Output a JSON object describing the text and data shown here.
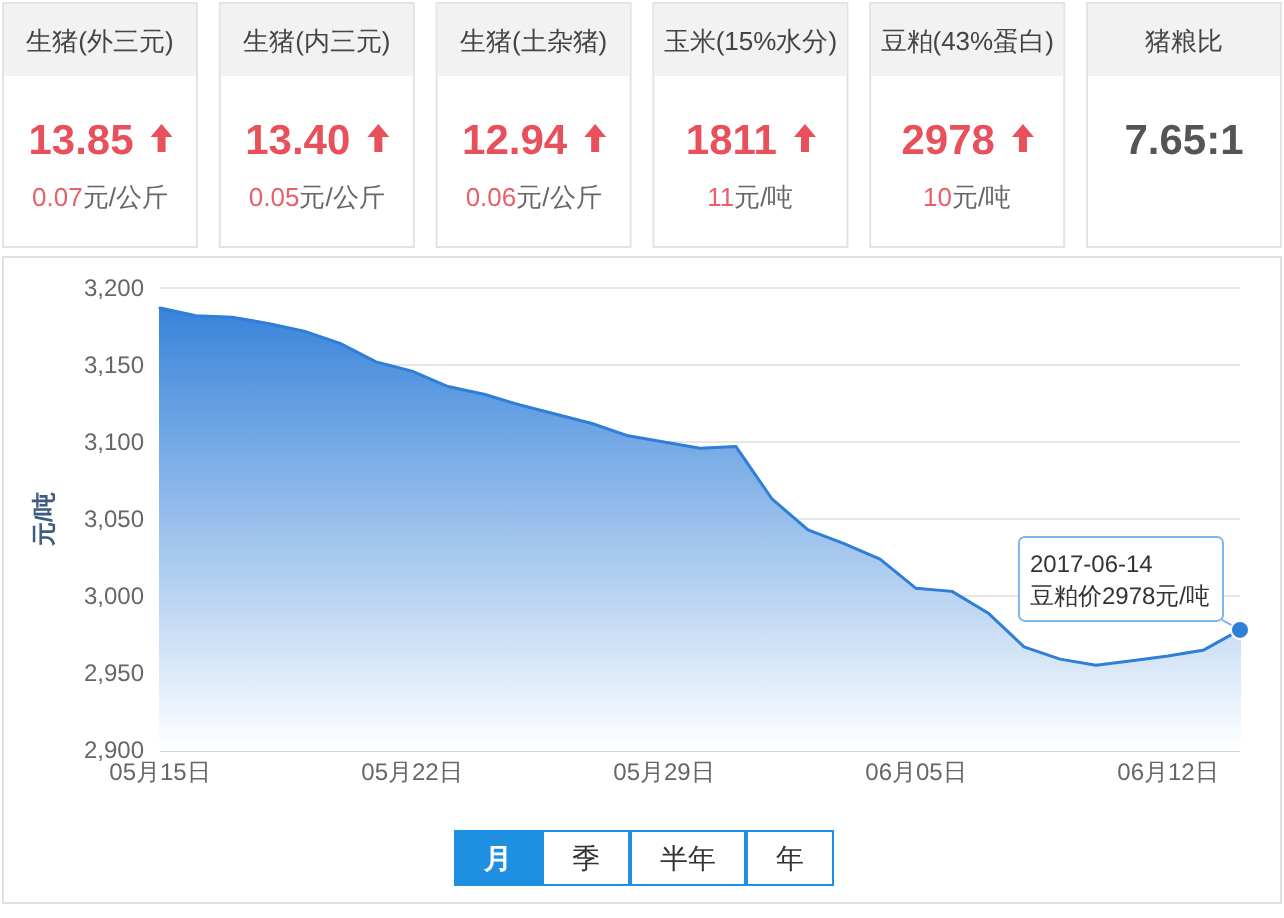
{
  "chart_data": [
    {
      "type": "other",
      "title": "生猪(外三元)",
      "annotations": [
        "13.85",
        "0.07元/公斤"
      ]
    },
    {
      "type": "other",
      "title": "生猪(内三元)",
      "annotations": [
        "13.40",
        "0.05元/公斤"
      ]
    },
    {
      "type": "other",
      "title": "生猪(土杂猪)",
      "annotations": [
        "12.94",
        "0.06元/公斤"
      ]
    },
    {
      "type": "other",
      "title": "玉米(15%水分)",
      "annotations": [
        "1811",
        "11元/吨"
      ]
    },
    {
      "type": "other",
      "title": "豆粕(43%蛋白)",
      "annotations": [
        "2978",
        "10元/吨"
      ]
    },
    {
      "type": "other",
      "title": "猪粮比",
      "annotations": [
        "7.65:1"
      ]
    },
    {
      "type": "area",
      "ylabel": "元/吨",
      "x": [
        "2017-05-15",
        "2017-05-16",
        "2017-05-17",
        "2017-05-18",
        "2017-05-19",
        "2017-05-20",
        "2017-05-21",
        "2017-05-22",
        "2017-05-23",
        "2017-05-24",
        "2017-05-25",
        "2017-05-26",
        "2017-05-27",
        "2017-05-28",
        "2017-05-29",
        "2017-05-30",
        "2017-05-31",
        "2017-06-01",
        "2017-06-02",
        "2017-06-03",
        "2017-06-04",
        "2017-06-05",
        "2017-06-06",
        "2017-06-07",
        "2017-06-08",
        "2017-06-09",
        "2017-06-10",
        "2017-06-11",
        "2017-06-12",
        "2017-06-13",
        "2017-06-14"
      ],
      "values": [
        3187,
        3182,
        3181,
        3177,
        3172,
        3164,
        3152,
        3146,
        3136,
        3131,
        3124,
        3118,
        3112,
        3104,
        3100,
        3096,
        3097,
        3063,
        3043,
        3034,
        3024,
        3005,
        3003,
        2989,
        2967,
        2959,
        2955,
        2958,
        2961,
        2965,
        2978
      ],
      "color": "#2f7ed8",
      "xlim": [
        "2017-05-15",
        "2017-06-14"
      ],
      "xticks": [
        {
          "value": "2017-05-15",
          "label": "05月15日"
        },
        {
          "value": "2017-05-22",
          "label": "05月22日"
        },
        {
          "value": "2017-05-29",
          "label": "05月29日"
        },
        {
          "value": "2017-06-05",
          "label": "06月05日"
        },
        {
          "value": "2017-06-12",
          "label": "06月12日"
        }
      ],
      "ylim": [
        2900,
        3200
      ],
      "yticks": [
        {
          "value": 2900,
          "label": "2,900"
        },
        {
          "value": 2950,
          "label": "2,950"
        },
        {
          "value": 3000,
          "label": "3,000"
        },
        {
          "value": 3050,
          "label": "3,050"
        },
        {
          "value": 3100,
          "label": "3,100"
        },
        {
          "value": 3150,
          "label": "3,150"
        },
        {
          "value": 3200,
          "label": "3,200"
        }
      ],
      "grid": "y",
      "annotations": [
        {
          "text": "2017-06-14\n豆粕价2978元/吨",
          "x": "2017-06-14",
          "y": 2978
        }
      ]
    },
    {
      "type": "other",
      "categories": [
        "月",
        "季",
        "半年",
        "年"
      ]
    }
  ]
}
